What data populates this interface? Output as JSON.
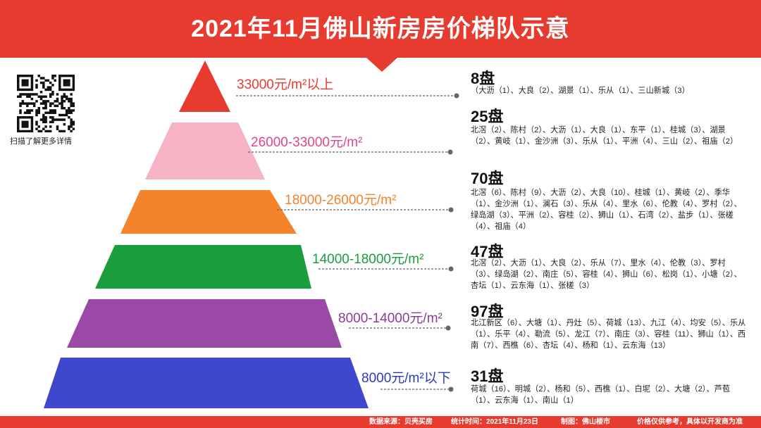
{
  "title": "2021年11月佛山新房房价梯队示意",
  "qr_caption": "扫描了解更多详情",
  "colors": {
    "banner": "#e63b2e"
  },
  "tiers": [
    {
      "price": "33000元/m²以上",
      "color": "#e63b2e",
      "count": "8盘",
      "detail": "（大沥（1）、大良（2）、湖景（1）、乐从（1）、三山新城（3）"
    },
    {
      "price": "26000-33000元/m²",
      "color": "#f7b3c6",
      "label_color": "#e1468a",
      "count": "25盘",
      "detail": "北滘（2）、陈村（2）、大沥（1）、大良（1）、东平（1）、桂城（3）、湖景（2）、黄岐（1）、金沙洲（3）、乐从（1）、平洲（4）、三山（2）、祖庙（2）"
    },
    {
      "price": "18000-26000元/m²",
      "color": "#f5832a",
      "count": "70盘",
      "detail": "北滘（6）、陈村（9）、大沥（2）、大良（10）、桂城（1）、黄岐（2）、季华（1）、金沙洲（1）、澜石（3）、乐从（4）、里水（6）、伦教（4）、罗村（2）、绿岛湖（3）、平洲（2）、容桂（2）、狮山（1）、石湾（2）、盐步（1）、张槎（4）、祖庙（4）"
    },
    {
      "price": "14000-18000元/m²",
      "color": "#1a9d3c",
      "count": "47盘",
      "detail": "北滘（2）、大沥（1）、大良（2）、乐从（7）、里水（4）、伦教（3）、罗村（3）、绿岛湖（2）、南庄（5）、容桂（4）、狮山（6）、松岗（1）、小塘（2）、杏坛（1）、云东海（1）、张槎（3）"
    },
    {
      "price": "8000-14000元/m²",
      "color": "#9a4aa6",
      "label_color": "#8a3b96",
      "count": "97盘",
      "detail": "北江新区（6）、大塘（1）、丹灶（5）、荷城（13）、九江（4）、均安（5）、乐从（1）、乐平（4）、勒流（5）、龙江（7）、南庄（3）、容桂（11）、狮山（1）、西南（7）、西樵（6）、杏坛（4）、杨和（1）、云东海（13）"
    },
    {
      "price": "8000元/m²以下",
      "color": "#3f48cc",
      "label_color": "#2b3bb8",
      "count": "31盘",
      "detail": "荷城（16）、明城（2）、杨和（5）、西樵（1）、白坭（2）、大塘（2）、芦苞（1）、云东海（1）、南山（1）"
    }
  ],
  "footer": {
    "source": "数据来源：贝壳买房",
    "stat_time": "统计时间：2021年11月23日",
    "maker": "制图：佛山楼市",
    "note": "价格仅供参考，具体以开发商为准"
  }
}
